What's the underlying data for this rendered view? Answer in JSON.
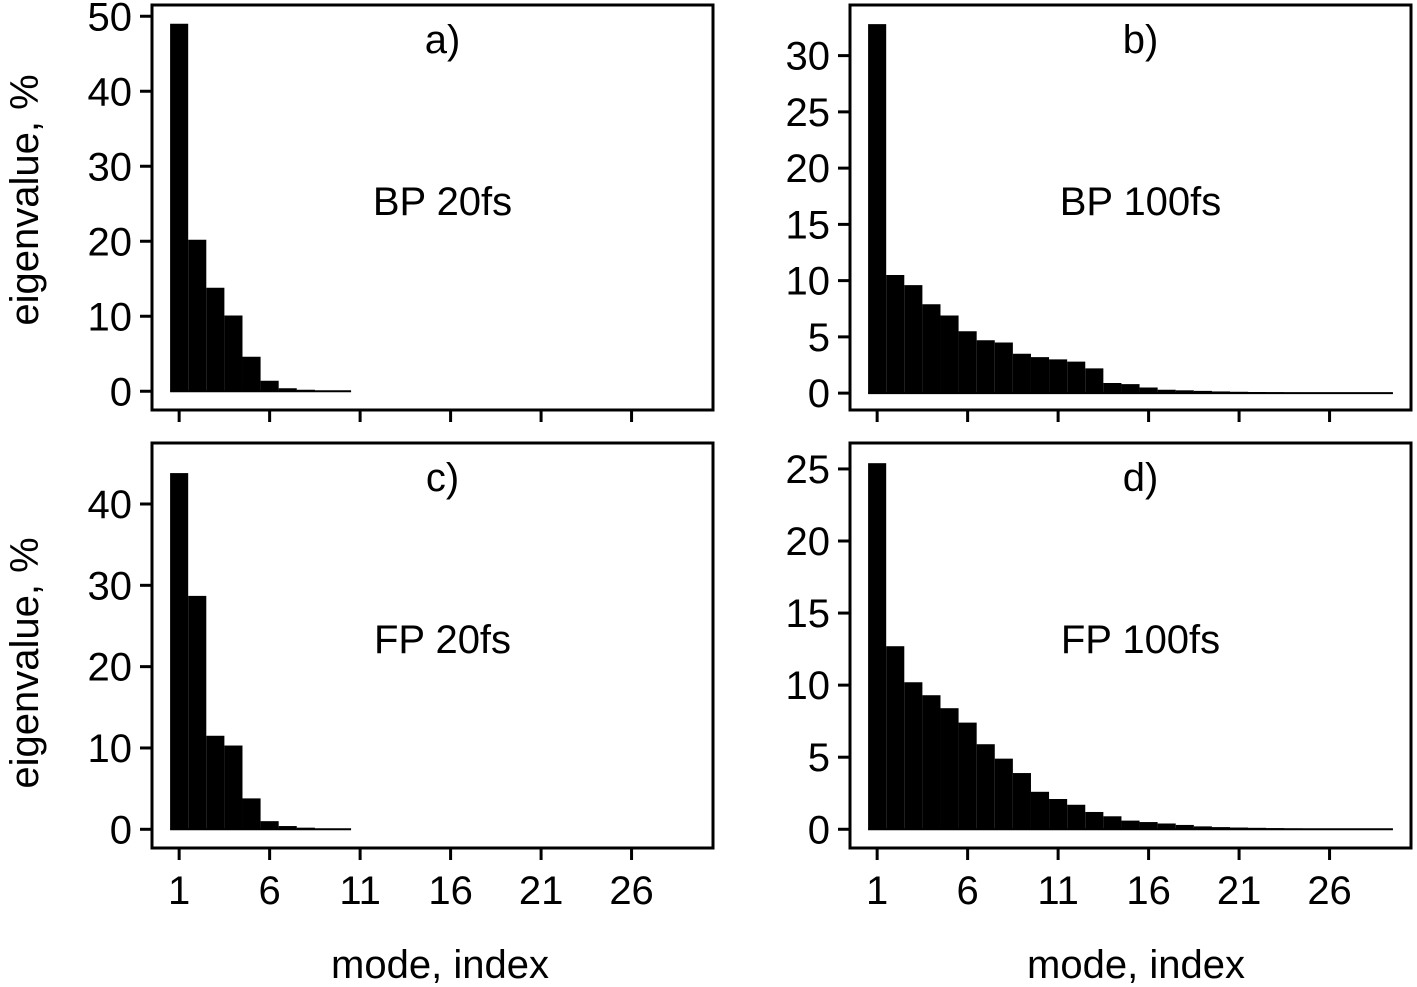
{
  "figure": {
    "ylabel": "eigenvalue,  %",
    "xlabel": "mode, index"
  },
  "chart_data": [
    {
      "type": "bar",
      "panel": "a)",
      "annotation": "BP 20fs",
      "ylabel": "eigenvalue,  %",
      "xlabel": "",
      "xlim": [
        -0.5,
        30.5
      ],
      "ylim": [
        -2.5,
        51.5
      ],
      "xticks": [
        1,
        6,
        11,
        16,
        21,
        26
      ],
      "xtick_labels": false,
      "yticks": [
        0,
        10,
        20,
        30,
        40,
        50
      ],
      "x": [
        1,
        2,
        3,
        4,
        5,
        6,
        7,
        8,
        9,
        10
      ],
      "values": [
        49.0,
        20.2,
        13.8,
        10.1,
        4.6,
        1.4,
        0.4,
        0.2,
        0.1,
        0.05
      ]
    },
    {
      "type": "bar",
      "panel": "b)",
      "annotation": "BP 100fs",
      "ylabel": "",
      "xlabel": "",
      "xlim": [
        -0.5,
        30.5
      ],
      "ylim": [
        -1.5,
        34.5
      ],
      "xticks": [
        1,
        6,
        11,
        16,
        21,
        26
      ],
      "xtick_labels": false,
      "yticks": [
        0,
        5,
        10,
        15,
        20,
        25,
        30
      ],
      "x": [
        1,
        2,
        3,
        4,
        5,
        6,
        7,
        8,
        9,
        10,
        11,
        12,
        13,
        14,
        15,
        16,
        17,
        18,
        19,
        20,
        21,
        22,
        23,
        24,
        25,
        26,
        27,
        28,
        29
      ],
      "values": [
        32.8,
        10.5,
        9.6,
        7.9,
        6.9,
        5.5,
        4.7,
        4.5,
        3.5,
        3.2,
        3.0,
        2.8,
        2.2,
        0.9,
        0.8,
        0.5,
        0.3,
        0.25,
        0.2,
        0.15,
        0.12,
        0.1,
        0.08,
        0.06,
        0.05,
        0.04,
        0.03,
        0.02,
        0.01
      ]
    },
    {
      "type": "bar",
      "panel": "c)",
      "annotation": "FP 20fs",
      "ylabel": "eigenvalue,  %",
      "xlabel": "mode, index",
      "xlim": [
        -0.5,
        30.5
      ],
      "ylim": [
        -2.3,
        47.5
      ],
      "xticks": [
        1,
        6,
        11,
        16,
        21,
        26
      ],
      "xtick_labels": true,
      "yticks": [
        0,
        10,
        20,
        30,
        40
      ],
      "x": [
        1,
        2,
        3,
        4,
        5,
        6,
        7,
        8,
        9,
        10
      ],
      "values": [
        43.8,
        28.7,
        11.5,
        10.3,
        3.8,
        1.0,
        0.4,
        0.2,
        0.1,
        0.05
      ]
    },
    {
      "type": "bar",
      "panel": "d)",
      "annotation": "FP 100fs",
      "ylabel": "",
      "xlabel": "mode, index",
      "xlim": [
        -0.5,
        30.5
      ],
      "ylim": [
        -1.3,
        26.8
      ],
      "xticks": [
        1,
        6,
        11,
        16,
        21,
        26
      ],
      "xtick_labels": true,
      "yticks": [
        0,
        5,
        10,
        15,
        20,
        25
      ],
      "x": [
        1,
        2,
        3,
        4,
        5,
        6,
        7,
        8,
        9,
        10,
        11,
        12,
        13,
        14,
        15,
        16,
        17,
        18,
        19,
        20,
        21,
        22,
        23,
        24,
        25,
        26,
        27,
        28,
        29
      ],
      "values": [
        25.4,
        12.7,
        10.2,
        9.3,
        8.4,
        7.4,
        5.9,
        4.9,
        3.9,
        2.6,
        2.1,
        1.7,
        1.2,
        0.9,
        0.6,
        0.5,
        0.4,
        0.3,
        0.2,
        0.15,
        0.12,
        0.1,
        0.08,
        0.06,
        0.05,
        0.04,
        0.03,
        0.02,
        0.01
      ]
    }
  ]
}
